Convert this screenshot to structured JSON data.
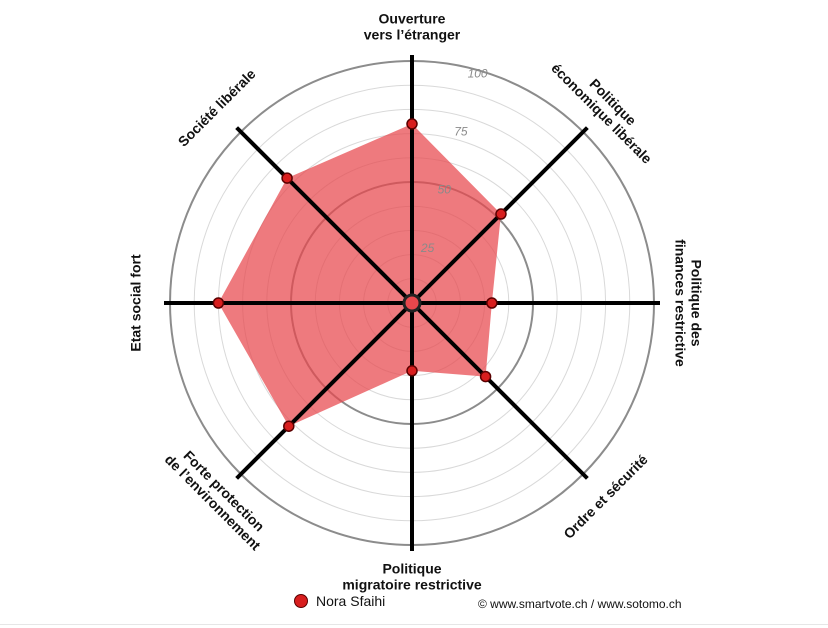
{
  "chart_data": {
    "type": "radar",
    "axes": [
      {
        "label_lines": [
          "Ouverture",
          "vers l’étranger"
        ]
      },
      {
        "label_lines": [
          "Politique",
          "économique libérale"
        ]
      },
      {
        "label_lines": [
          "Politique des",
          "finances restrictive"
        ]
      },
      {
        "label_lines": [
          "Ordre et sécurité"
        ]
      },
      {
        "label_lines": [
          "Politique",
          "migratoire restrictive"
        ]
      },
      {
        "label_lines": [
          "Forte protection",
          "de l’environnement"
        ]
      },
      {
        "label_lines": [
          "Etat social fort"
        ]
      },
      {
        "label_lines": [
          "Société libérale"
        ]
      }
    ],
    "ticks": [
      25,
      50,
      75,
      100
    ],
    "range": [
      0,
      100
    ],
    "grid_step": 10,
    "series": [
      {
        "name": "Nora Sfaihi",
        "values": [
          74,
          52,
          33,
          43,
          28,
          72,
          80,
          73
        ]
      }
    ],
    "colors": {
      "fill": "#e8474c",
      "point": "#d81e1e",
      "point_stroke": "#5a0000",
      "axis": "#000000",
      "grid": "#aaaaaa"
    }
  },
  "legend": {
    "name": "Nora Sfaihi"
  },
  "copyright": "© www.smartvote.ch / www.sotomo.ch"
}
